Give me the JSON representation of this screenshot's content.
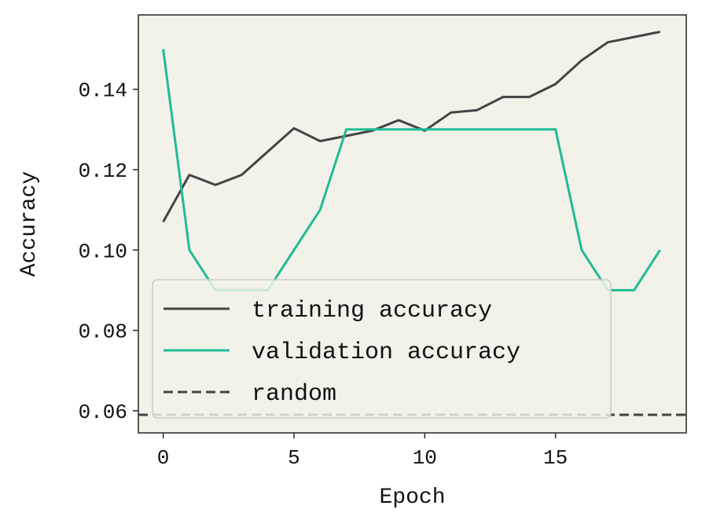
{
  "chart_data": {
    "type": "line",
    "xlabel": "Epoch",
    "ylabel": "Accuracy",
    "xlim": [
      -0.95,
      20.0
    ],
    "ylim": [
      0.0545,
      0.1585
    ],
    "xticks": [
      0,
      5,
      10,
      15
    ],
    "xtick_labels": [
      "0",
      "5",
      "10",
      "15"
    ],
    "yticks": [
      0.06,
      0.08,
      0.1,
      0.12,
      0.14
    ],
    "ytick_labels": [
      "0.06",
      "0.08",
      "0.10",
      "0.12",
      "0.14"
    ],
    "grid": false,
    "legend_position": "lower-left",
    "background_color": "#f2f2e8",
    "series": [
      {
        "name": "training accuracy",
        "color": "#444444",
        "style": "solid",
        "x": [
          0,
          1,
          2,
          3,
          4,
          5,
          6,
          7,
          8,
          9,
          10,
          11,
          12,
          13,
          14,
          15,
          16,
          17,
          18,
          19
        ],
        "values": [
          0.107,
          0.1187,
          0.1162,
          0.1187,
          0.1245,
          0.1303,
          0.1271,
          0.1284,
          0.1297,
          0.1323,
          0.1297,
          0.1342,
          0.1348,
          0.1381,
          0.1381,
          0.1413,
          0.1472,
          0.1517,
          0.153,
          0.1543
        ]
      },
      {
        "name": "validation accuracy",
        "color": "#20bb96",
        "style": "solid",
        "x": [
          0,
          1,
          2,
          3,
          4,
          5,
          6,
          7,
          8,
          9,
          10,
          11,
          12,
          13,
          14,
          15,
          16,
          17,
          18,
          19
        ],
        "values": [
          0.15,
          0.1,
          0.09,
          0.09,
          0.09,
          0.1,
          0.11,
          0.13,
          0.13,
          0.13,
          0.13,
          0.13,
          0.13,
          0.13,
          0.13,
          0.13,
          0.1,
          0.09,
          0.09,
          0.1
        ]
      },
      {
        "name": "random",
        "color": "#444444",
        "style": "dashed",
        "constant": 0.059
      }
    ]
  }
}
